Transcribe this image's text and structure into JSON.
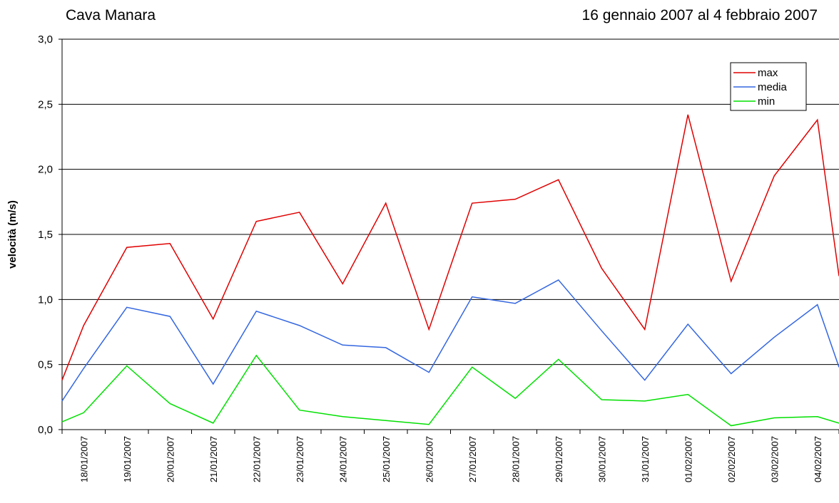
{
  "chart_data": {
    "type": "line",
    "title": "Cava Manara",
    "subtitle": "16 gennaio 2007 al 4 febbraio 2007",
    "y_label": "velocità (m/s)",
    "categories": [
      null,
      "18/01/2007",
      "19/01/2007",
      "20/01/2007",
      "21/01/2007",
      "22/01/2007",
      "23/01/2007",
      "24/01/2007",
      "25/01/2007",
      "26/01/2007",
      "27/01/2007",
      "28/01/2007",
      "29/01/2007",
      "30/01/2007",
      "31/01/2007",
      "01/02/2007",
      "02/02/2007",
      "03/02/2007",
      "04/02/2007",
      null
    ],
    "series": [
      {
        "name": "max",
        "color": "#e00000",
        "values": [
          0.38,
          0.8,
          1.4,
          1.43,
          0.85,
          1.6,
          1.67,
          1.12,
          1.74,
          0.77,
          1.74,
          1.77,
          1.92,
          1.24,
          0.77,
          2.42,
          1.14,
          1.95,
          2.38,
          1.18
        ]
      },
      {
        "name": "media",
        "color": "#3366e0",
        "values": [
          0.22,
          0.47,
          0.94,
          0.87,
          0.35,
          0.91,
          0.8,
          0.65,
          0.63,
          0.44,
          1.02,
          0.97,
          1.15,
          0.76,
          0.38,
          0.81,
          0.43,
          0.71,
          0.96,
          0.48
        ]
      },
      {
        "name": "min",
        "color": "#00e000",
        "values": [
          0.06,
          0.13,
          0.49,
          0.2,
          0.05,
          0.57,
          0.15,
          0.1,
          0.07,
          0.04,
          0.48,
          0.24,
          0.54,
          0.23,
          0.22,
          0.27,
          0.03,
          0.09,
          0.1,
          0.05
        ]
      }
    ],
    "ylim": [
      0,
      3
    ],
    "yticks": [
      {
        "value": 0,
        "label": "0,0"
      },
      {
        "value": 0.5,
        "label": "0,5"
      },
      {
        "value": 1,
        "label": "1,0"
      },
      {
        "value": 1.5,
        "label": "1,5"
      },
      {
        "value": 2,
        "label": "2,0"
      },
      {
        "value": 2.5,
        "label": "2,5"
      },
      {
        "value": 3,
        "label": "3,0"
      }
    ],
    "grid": true,
    "legend": "top-right"
  }
}
